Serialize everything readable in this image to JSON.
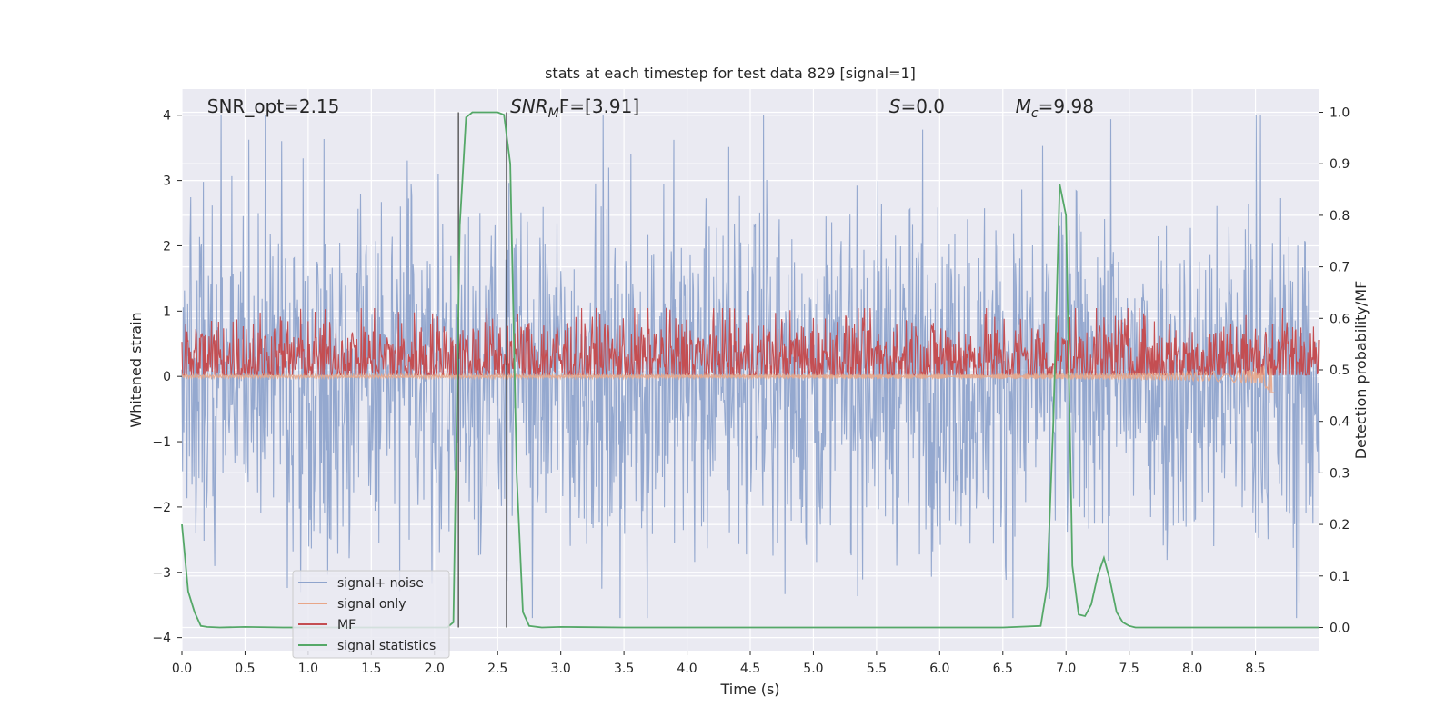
{
  "chart_data": {
    "type": "line",
    "title": "stats at each timestep for test data 829 [signal=1]",
    "xlabel": "Time (s)",
    "ylabel": "Whitened strain",
    "y2label": "Detection probability/MF",
    "xlim": [
      0.0,
      9.0
    ],
    "ylim": [
      -4.2,
      4.4
    ],
    "y2lim": [
      -0.045,
      1.045
    ],
    "xticks": [
      "0.0",
      "0.5",
      "1.0",
      "1.5",
      "2.0",
      "2.5",
      "3.0",
      "3.5",
      "4.0",
      "4.5",
      "5.0",
      "5.5",
      "6.0",
      "6.5",
      "7.0",
      "7.5",
      "8.0",
      "8.5"
    ],
    "yticks": [
      "4",
      "3",
      "2",
      "1",
      "0",
      "−1",
      "−2",
      "−3",
      "−4"
    ],
    "y2ticks": [
      "1.0",
      "0.9",
      "0.8",
      "0.7",
      "0.6",
      "0.5",
      "0.4",
      "0.3",
      "0.2",
      "0.1",
      "0.0"
    ],
    "grid": true,
    "legend_position": "lower-left",
    "annotations": {
      "snr_opt": "SNR_opt=2.15",
      "snr_mf_main": "SNR",
      "snr_mf_sub": "M",
      "snr_mf_rest": "F=[3.91]",
      "s_main": "S",
      "s_rest": "=0.0",
      "mc_main": "M",
      "mc_sub": "c",
      "mc_rest": "=9.98"
    },
    "annotation_x": {
      "snr_opt": 0.2,
      "snr_mf": 2.6,
      "s": 5.6,
      "mc": 6.6
    },
    "vertical_lines": [
      {
        "x": 2.19,
        "y_from": 0.0,
        "y_to": 1.0
      },
      {
        "x": 2.57,
        "y_from": 0.0,
        "y_to": 1.0
      }
    ],
    "series": [
      {
        "name": "signal+ noise",
        "color": "#8fa4cc",
        "axis": "left",
        "noise_amplitude": 3.4
      },
      {
        "name": "signal only",
        "color": "#e8a688",
        "axis": "left",
        "peak_time": 8.65,
        "peak_amplitude": 0.35
      },
      {
        "name": "MF",
        "color": "#c44e52",
        "axis": "right",
        "baseline": 0.52,
        "amplitude": 0.1
      },
      {
        "name": "signal statistics",
        "color": "#55a868",
        "axis": "right",
        "x": [
          0.0,
          0.05,
          0.1,
          0.15,
          0.2,
          0.3,
          0.5,
          0.8,
          1.0,
          1.5,
          2.0,
          2.1,
          2.15,
          2.2,
          2.25,
          2.3,
          2.4,
          2.5,
          2.55,
          2.6,
          2.65,
          2.7,
          2.75,
          2.85,
          3.0,
          3.5,
          4.0,
          5.0,
          6.0,
          6.5,
          6.8,
          6.85,
          6.9,
          6.95,
          7.0,
          7.05,
          7.1,
          7.15,
          7.2,
          7.25,
          7.3,
          7.35,
          7.4,
          7.45,
          7.5,
          7.55,
          7.6,
          7.7,
          8.0,
          8.5,
          9.0
        ],
        "y": [
          0.2,
          0.07,
          0.03,
          0.003,
          0.001,
          0.0,
          0.001,
          0.0,
          0.0,
          0.0,
          0.0,
          0.0,
          0.01,
          0.78,
          0.99,
          1.0,
          1.0,
          1.0,
          0.995,
          0.9,
          0.3,
          0.03,
          0.003,
          0.0,
          0.001,
          0.0,
          0.0,
          0.0,
          0.0,
          0.0,
          0.003,
          0.08,
          0.4,
          0.86,
          0.8,
          0.12,
          0.025,
          0.022,
          0.045,
          0.1,
          0.135,
          0.09,
          0.03,
          0.01,
          0.003,
          0.0,
          0.0,
          0.0,
          0.0,
          0.0,
          0.0
        ]
      }
    ]
  }
}
